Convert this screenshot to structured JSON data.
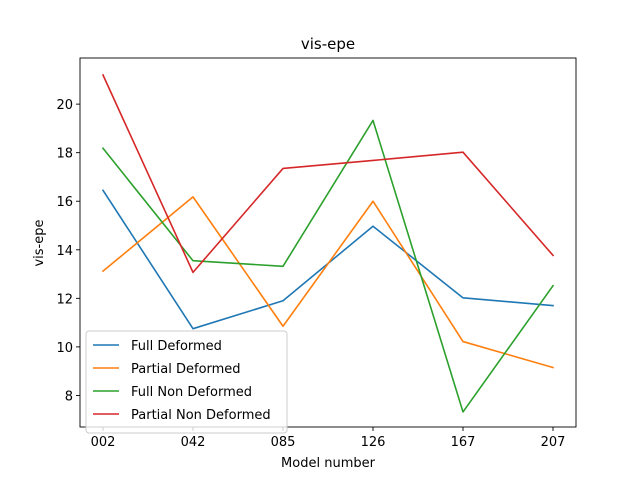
{
  "chart_data": {
    "type": "line",
    "title": "vis-epe",
    "xlabel": "Model number",
    "ylabel": "vis-epe",
    "categories": [
      "002",
      "042",
      "085",
      "126",
      "167",
      "207"
    ],
    "ylim": [
      6.7,
      21.9
    ],
    "yticks": [
      8,
      10,
      12,
      14,
      16,
      18,
      20
    ],
    "grid": false,
    "legend_position": "lower-left",
    "series": [
      {
        "name": "Full Deformed",
        "color": "#1f77b4",
        "values": [
          16.45,
          10.75,
          11.9,
          14.97,
          12.02,
          11.7
        ]
      },
      {
        "name": "Partial Deformed",
        "color": "#ff7f0e",
        "values": [
          13.12,
          16.18,
          10.85,
          16.0,
          10.22,
          9.15
        ]
      },
      {
        "name": "Full Non Deformed",
        "color": "#2ca02c",
        "values": [
          18.18,
          13.55,
          13.32,
          19.33,
          7.32,
          12.52
        ]
      },
      {
        "name": "Partial Non Deformed",
        "color": "#d62728",
        "values": [
          21.2,
          13.07,
          17.35,
          17.68,
          18.02,
          13.77
        ]
      }
    ]
  }
}
